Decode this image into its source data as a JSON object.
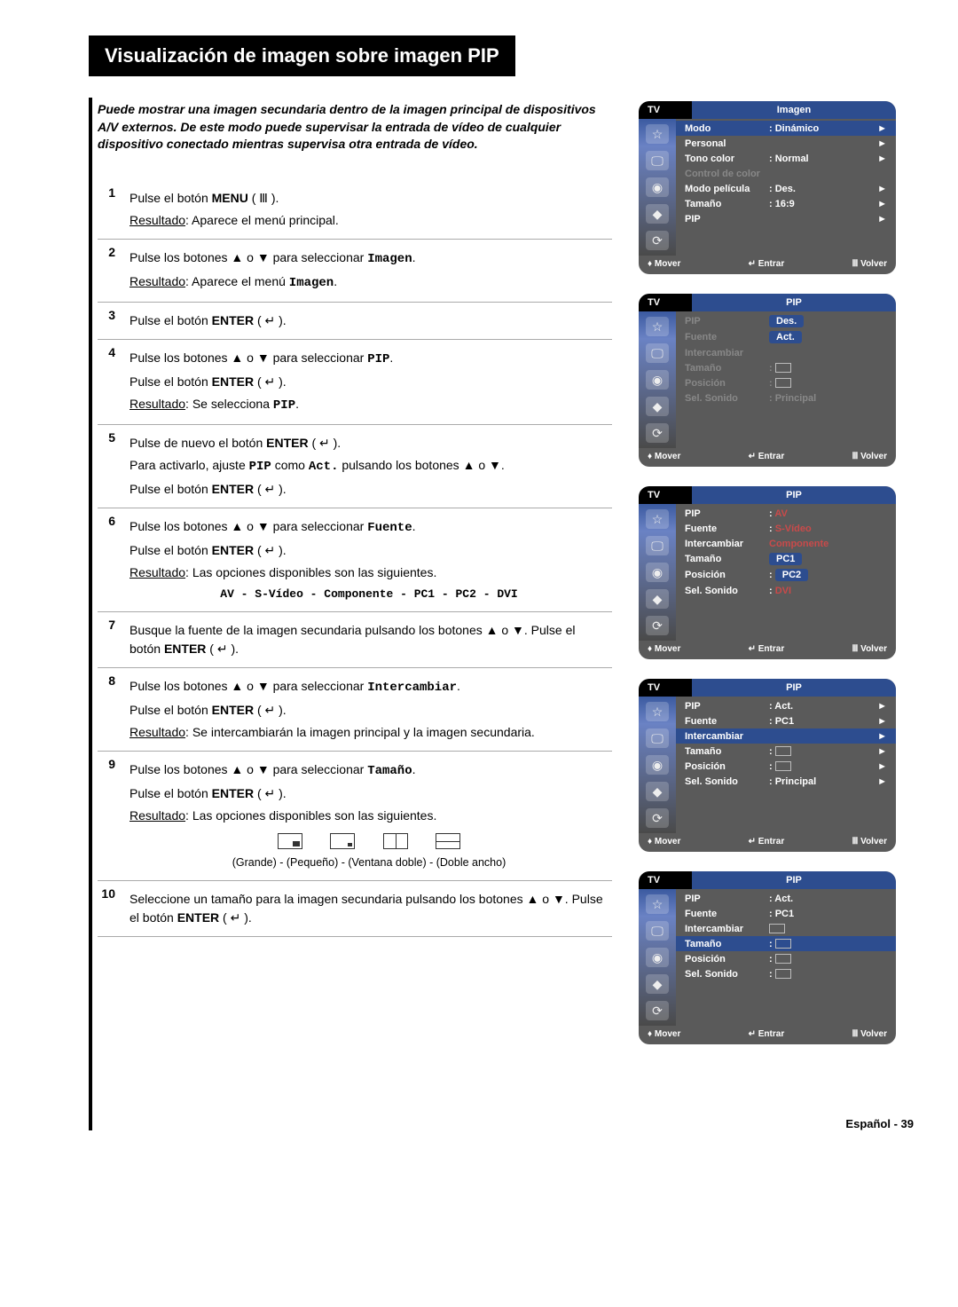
{
  "page": {
    "title": "Visualización de imagen sobre imagen PIP",
    "intro": "Puede mostrar una imagen secundaria dentro de la imagen principal de dispositivos A/V externos. De este modo puede supervisar la entrada de vídeo de cualquier dispositivo conectado mientras supervisa otra entrada de vídeo.",
    "footer": "Español - 39"
  },
  "labels": {
    "menu": "MENU",
    "enter": "ENTER",
    "resultado": "Resultado",
    "imagen": "Imagen",
    "pip": "PIP",
    "act": "Act.",
    "fuente": "Fuente",
    "intercambiar": "Intercambiar",
    "tamano": "Tamaño"
  },
  "steps": [
    {
      "n": "1",
      "lines": [
        {
          "type": "plain",
          "pre": "Pulse el botón ",
          "bold": "MENU",
          "post": " ( Ⅲ )."
        },
        {
          "type": "result",
          "text": "Aparece el menú principal."
        }
      ]
    },
    {
      "n": "2",
      "lines": [
        {
          "type": "plain",
          "pre": "Pulse los botones ▲ o ▼ para seleccionar ",
          "mono": "Imagen",
          "post": "."
        },
        {
          "type": "result",
          "pre": "Aparece el menú ",
          "mono": "Imagen",
          "post": "."
        }
      ]
    },
    {
      "n": "3",
      "lines": [
        {
          "type": "plain",
          "pre": "Pulse el botón ",
          "bold": "ENTER",
          "post": " ( ↵ )."
        }
      ]
    },
    {
      "n": "4",
      "lines": [
        {
          "type": "plain",
          "pre": "Pulse los botones ▲ o ▼ para seleccionar ",
          "mono": "PIP",
          "post": "."
        },
        {
          "type": "plain",
          "pre": "Pulse el botón ",
          "bold": "ENTER",
          "post": " ( ↵ )."
        },
        {
          "type": "result",
          "pre": "Se selecciona ",
          "mono": "PIP",
          "post": "."
        }
      ]
    },
    {
      "n": "5",
      "lines": [
        {
          "type": "plain",
          "pre": "Pulse de nuevo el botón ",
          "bold": "ENTER",
          "post": " ( ↵ )."
        },
        {
          "type": "complex",
          "text": "Para activarlo, ajuste <span class='mono'>PIP</span> como <span class='mono'>Act.</span> pulsando los botones ▲ o ▼."
        },
        {
          "type": "plain",
          "pre": "Pulse el botón ",
          "bold": "ENTER",
          "post": " ( ↵ )."
        }
      ]
    },
    {
      "n": "6",
      "lines": [
        {
          "type": "plain",
          "pre": "Pulse los botones ▲ o ▼ para seleccionar ",
          "mono": "Fuente",
          "post": "."
        },
        {
          "type": "plain",
          "pre": "Pulse el botón ",
          "bold": "ENTER",
          "post": " ( ↵ )."
        },
        {
          "type": "result",
          "text": "Las opciones disponibles son las siguientes."
        },
        {
          "type": "options",
          "text": "AV - S-Vídeo - Componente - PC1 - PC2 - DVI"
        }
      ]
    },
    {
      "n": "7",
      "lines": [
        {
          "type": "complex",
          "text": "Busque la fuente de la imagen secundaria pulsando los botones ▲ o ▼. Pulse el botón <b>ENTER</b> ( ↵ )."
        }
      ]
    },
    {
      "n": "8",
      "lines": [
        {
          "type": "plain",
          "pre": "Pulse los botones ▲ o ▼ para seleccionar ",
          "mono": "Intercambiar",
          "post": "."
        },
        {
          "type": "plain",
          "pre": "Pulse el botón ",
          "bold": "ENTER",
          "post": " ( ↵ )."
        },
        {
          "type": "result",
          "text": "Se intercambiarán la imagen principal y la imagen secundaria."
        }
      ]
    },
    {
      "n": "9",
      "lines": [
        {
          "type": "plain",
          "pre": "Pulse los botones ▲ o ▼ para seleccionar ",
          "mono": "Tamaño",
          "post": "."
        },
        {
          "type": "plain",
          "pre": "Pulse el botón ",
          "bold": "ENTER",
          "post": " ( ↵ )."
        },
        {
          "type": "result",
          "text": "Las opciones disponibles son las siguientes."
        },
        {
          "type": "sizes",
          "caption": "(Grande) - (Pequeño) - (Ventana doble) - (Doble ancho)"
        }
      ]
    },
    {
      "n": "10",
      "lines": [
        {
          "type": "complex",
          "text": "Seleccione un tamaño para la imagen secundaria pulsando los botones ▲ o ▼. Pulse el botón <b>ENTER</b> ( ↵ )."
        }
      ]
    }
  ],
  "osd": {
    "footer": {
      "move": "Mover",
      "enter": "Entrar",
      "back": "Volver"
    },
    "tv": "TV",
    "menus": [
      {
        "title": "Imagen",
        "hl": 0,
        "rows": [
          {
            "k": "Modo",
            "v": ": Dinámico",
            "arr": "►"
          },
          {
            "k": "Personal",
            "v": "",
            "arr": "►"
          },
          {
            "k": "Tono color",
            "v": ": Normal",
            "arr": "►"
          },
          {
            "k": "Control de color",
            "v": "",
            "arr": "",
            "dim": true
          },
          {
            "k": "Modo película",
            "v": ": Des.",
            "arr": "►"
          },
          {
            "k": "Tamaño",
            "v": ": 16:9",
            "arr": "►"
          },
          {
            "k": "PIP",
            "v": "",
            "arr": "►"
          }
        ]
      },
      {
        "title": "PIP",
        "hl": -1,
        "rows": [
          {
            "k": "PIP",
            "v": "",
            "boxv": "Des.",
            "dim": true
          },
          {
            "k": "Fuente",
            "v": "",
            "boxv": "Act.",
            "dim": true
          },
          {
            "k": "Intercambiar",
            "v": "",
            "dim": true
          },
          {
            "k": "Tamaño",
            "v": ":",
            "icon": true,
            "dim": true
          },
          {
            "k": "Posición",
            "v": ":",
            "icon": true,
            "dim": true
          },
          {
            "k": "Sel. Sonido",
            "v": ": Principal",
            "dim": true
          }
        ]
      },
      {
        "title": "PIP",
        "hl": -1,
        "rows": [
          {
            "k": "PIP",
            "v": ":",
            "redv": "AV"
          },
          {
            "k": "Fuente",
            "v": ":",
            "redv": "S-Vídeo"
          },
          {
            "k": "Intercambiar",
            "v": "",
            "redv": "Componente"
          },
          {
            "k": "Tamaño",
            "v": "",
            "boxv": "PC1"
          },
          {
            "k": "Posición",
            "v": ":",
            "boxv": "PC2"
          },
          {
            "k": "Sel. Sonido",
            "v": ":",
            "redv": "DVI"
          }
        ]
      },
      {
        "title": "PIP",
        "hl": 2,
        "rows": [
          {
            "k": "PIP",
            "v": ": Act.",
            "arr": "►"
          },
          {
            "k": "Fuente",
            "v": ": PC1",
            "arr": "►"
          },
          {
            "k": "Intercambiar",
            "v": "",
            "arr": "►"
          },
          {
            "k": "Tamaño",
            "v": ":",
            "icon": true,
            "arr": "►"
          },
          {
            "k": "Posición",
            "v": ":",
            "icon": true,
            "arr": "►"
          },
          {
            "k": "Sel. Sonido",
            "v": ": Principal",
            "arr": "►"
          }
        ]
      },
      {
        "title": "PIP",
        "hl": 3,
        "rows": [
          {
            "k": "PIP",
            "v": ": Act."
          },
          {
            "k": "Fuente",
            "v": ": PC1"
          },
          {
            "k": "Intercambiar",
            "v": "",
            "icon": true
          },
          {
            "k": "Tamaño",
            "v": ":",
            "icon": true
          },
          {
            "k": "Posición",
            "v": ":",
            "icon": true
          },
          {
            "k": "Sel. Sonido",
            "v": ":",
            "icon": true
          }
        ]
      }
    ]
  }
}
